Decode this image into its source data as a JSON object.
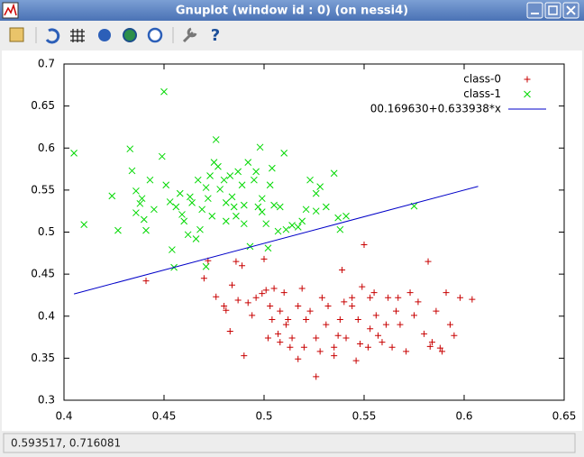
{
  "window": {
    "title": "Gnuplot (window id : 0) (on nessi4)"
  },
  "status_bar": {
    "text": "0.593517, 0.716081"
  },
  "chart_data": {
    "type": "scatter",
    "xlim": [
      0.4,
      0.65
    ],
    "xticks": [
      0.4,
      0.45,
      0.5,
      0.55,
      0.6,
      0.65
    ],
    "ylim": [
      0.3,
      0.7
    ],
    "yticks": [
      0.3,
      0.35,
      0.4,
      0.45,
      0.5,
      0.55,
      0.6,
      0.65,
      0.7
    ],
    "grid": false,
    "legend": "top-right",
    "series": [
      {
        "name": "class-0",
        "color": "#c80000",
        "style": "points",
        "marker": "+",
        "x": [
          0.441,
          0.47,
          0.472,
          0.476,
          0.48,
          0.481,
          0.483,
          0.484,
          0.486,
          0.487,
          0.49,
          0.489,
          0.492,
          0.494,
          0.496,
          0.499,
          0.5,
          0.501,
          0.502,
          0.503,
          0.504,
          0.505,
          0.507,
          0.508,
          0.508,
          0.51,
          0.511,
          0.512,
          0.513,
          0.514,
          0.517,
          0.517,
          0.519,
          0.52,
          0.521,
          0.523,
          0.526,
          0.526,
          0.528,
          0.529,
          0.531,
          0.532,
          0.535,
          0.535,
          0.537,
          0.538,
          0.539,
          0.54,
          0.541,
          0.544,
          0.544,
          0.546,
          0.547,
          0.548,
          0.549,
          0.55,
          0.552,
          0.553,
          0.553,
          0.555,
          0.556,
          0.557,
          0.559,
          0.561,
          0.562,
          0.564,
          0.566,
          0.567,
          0.568,
          0.571,
          0.573,
          0.575,
          0.577,
          0.58,
          0.582,
          0.584,
          0.586,
          0.589,
          0.591,
          0.593,
          0.595,
          0.598,
          0.604,
          0.583,
          0.588
        ],
        "values": [
          0.442,
          0.445,
          0.466,
          0.423,
          0.412,
          0.407,
          0.382,
          0.437,
          0.465,
          0.419,
          0.353,
          0.46,
          0.416,
          0.401,
          0.422,
          0.427,
          0.468,
          0.431,
          0.374,
          0.412,
          0.396,
          0.433,
          0.379,
          0.369,
          0.406,
          0.428,
          0.39,
          0.396,
          0.363,
          0.374,
          0.349,
          0.412,
          0.433,
          0.363,
          0.396,
          0.406,
          0.374,
          0.328,
          0.358,
          0.422,
          0.39,
          0.412,
          0.353,
          0.363,
          0.377,
          0.396,
          0.455,
          0.417,
          0.374,
          0.412,
          0.422,
          0.347,
          0.396,
          0.367,
          0.435,
          0.485,
          0.363,
          0.422,
          0.385,
          0.428,
          0.401,
          0.377,
          0.369,
          0.39,
          0.422,
          0.363,
          0.406,
          0.422,
          0.39,
          0.358,
          0.428,
          0.401,
          0.417,
          0.379,
          0.465,
          0.369,
          0.406,
          0.358,
          0.428,
          0.39,
          0.377,
          0.422,
          0.42,
          0.364,
          0.362
        ]
      },
      {
        "name": "class-1",
        "color": "#00d800",
        "style": "points",
        "marker": "x",
        "x": [
          0.405,
          0.41,
          0.424,
          0.427,
          0.433,
          0.434,
          0.436,
          0.438,
          0.436,
          0.439,
          0.441,
          0.44,
          0.443,
          0.445,
          0.449,
          0.45,
          0.451,
          0.453,
          0.454,
          0.455,
          0.456,
          0.458,
          0.459,
          0.46,
          0.462,
          0.463,
          0.464,
          0.466,
          0.467,
          0.468,
          0.469,
          0.471,
          0.472,
          0.473,
          0.474,
          0.475,
          0.476,
          0.477,
          0.478,
          0.48,
          0.481,
          0.481,
          0.483,
          0.484,
          0.485,
          0.486,
          0.487,
          0.489,
          0.49,
          0.49,
          0.492,
          0.493,
          0.495,
          0.496,
          0.498,
          0.499,
          0.499,
          0.501,
          0.502,
          0.503,
          0.505,
          0.508,
          0.51,
          0.511,
          0.514,
          0.517,
          0.519,
          0.521,
          0.523,
          0.526,
          0.526,
          0.528,
          0.531,
          0.535,
          0.537,
          0.538,
          0.541,
          0.575,
          0.471,
          0.504,
          0.497,
          0.507
        ],
        "values": [
          0.594,
          0.509,
          0.543,
          0.502,
          0.599,
          0.573,
          0.549,
          0.534,
          0.523,
          0.54,
          0.502,
          0.515,
          0.562,
          0.527,
          0.59,
          0.667,
          0.556,
          0.536,
          0.479,
          0.458,
          0.53,
          0.546,
          0.521,
          0.513,
          0.497,
          0.542,
          0.535,
          0.492,
          0.562,
          0.503,
          0.527,
          0.553,
          0.54,
          0.567,
          0.519,
          0.583,
          0.61,
          0.578,
          0.551,
          0.562,
          0.535,
          0.513,
          0.567,
          0.542,
          0.53,
          0.519,
          0.572,
          0.556,
          0.532,
          0.51,
          0.583,
          0.483,
          0.562,
          0.572,
          0.601,
          0.54,
          0.524,
          0.51,
          0.481,
          0.556,
          0.532,
          0.53,
          0.594,
          0.503,
          0.508,
          0.506,
          0.513,
          0.527,
          0.562,
          0.525,
          0.546,
          0.554,
          0.53,
          0.57,
          0.517,
          0.503,
          0.519,
          0.531,
          0.459,
          0.576,
          0.53,
          0.501
        ]
      },
      {
        "name": "00.169630+0.633938*x",
        "color": "#0000c8",
        "style": "lines",
        "x": [
          0.405,
          0.607
        ],
        "values": [
          0.4264,
          0.5544
        ]
      }
    ]
  }
}
